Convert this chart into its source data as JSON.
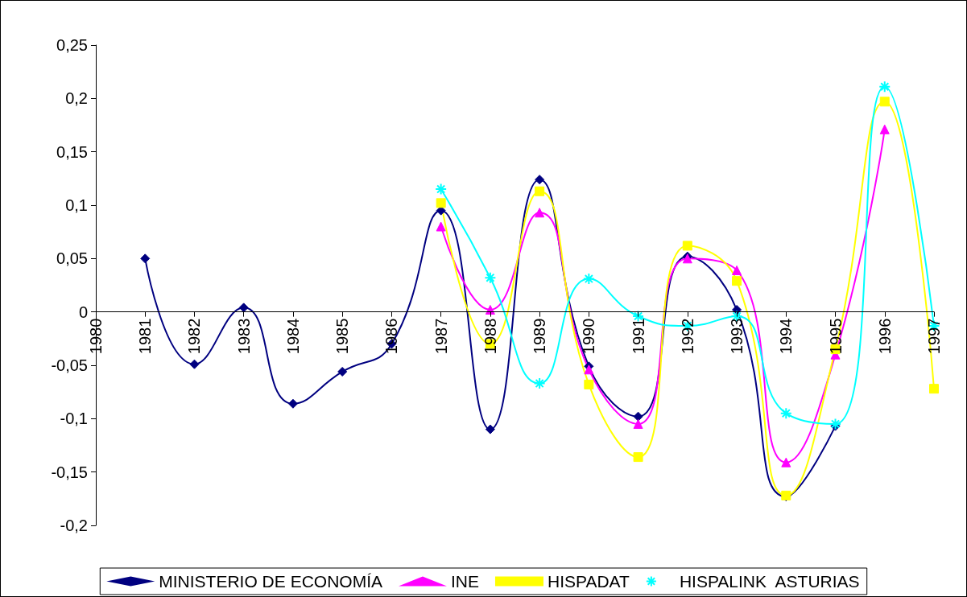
{
  "chart_data": {
    "type": "line",
    "categories": [
      "1980",
      "1981",
      "1982",
      "1983",
      "1984",
      "1985",
      "1986",
      "1987",
      "1988",
      "1989",
      "1990",
      "1991",
      "1992",
      "1993",
      "1994",
      "1995",
      "1996",
      "1997"
    ],
    "series": [
      {
        "name": "MINISTERIO DE ECONOMÍA",
        "color": "#000080",
        "marker": "diamond",
        "values": [
          null,
          0.05,
          -0.049,
          0.004,
          -0.086,
          -0.056,
          -0.03,
          0.095,
          -0.11,
          0.124,
          -0.051,
          -0.098,
          0.052,
          0.002,
          -0.173,
          -0.107,
          null,
          null
        ]
      },
      {
        "name": "INE",
        "color": "#ff00ff",
        "marker": "triangle",
        "values": [
          null,
          null,
          null,
          null,
          null,
          null,
          null,
          0.08,
          0.002,
          0.093,
          -0.054,
          -0.105,
          0.05,
          0.039,
          -0.141,
          -0.04,
          0.171,
          null
        ]
      },
      {
        "name": "HISPADAT",
        "color": "#ffff00",
        "marker": "square",
        "values": [
          null,
          null,
          null,
          null,
          null,
          null,
          null,
          0.102,
          -0.03,
          0.113,
          -0.068,
          -0.136,
          0.062,
          0.029,
          -0.172,
          -0.035,
          0.197,
          -0.072
        ]
      },
      {
        "name": "HISPALINK  ASTURIAS",
        "color": "#00ffff",
        "marker": "cross",
        "values": [
          null,
          null,
          null,
          null,
          null,
          null,
          null,
          0.115,
          0.032,
          -0.067,
          0.031,
          -0.004,
          -0.013,
          -0.004,
          -0.095,
          -0.105,
          0.211,
          -0.013
        ]
      }
    ],
    "ylim": [
      -0.2,
      0.25
    ],
    "yticks": [
      {
        "value": -0.2,
        "label": "-0,2"
      },
      {
        "value": -0.15,
        "label": "-0,15"
      },
      {
        "value": -0.1,
        "label": "-0,1"
      },
      {
        "value": -0.05,
        "label": "-0,05"
      },
      {
        "value": 0,
        "label": "0"
      },
      {
        "value": 0.05,
        "label": "0,05"
      },
      {
        "value": 0.1,
        "label": "0,1"
      },
      {
        "value": 0.15,
        "label": "0,15"
      },
      {
        "value": 0.2,
        "label": "0,2"
      },
      {
        "value": 0.25,
        "label": "0,25"
      }
    ],
    "grid": false,
    "legend": "bottom",
    "line_style": "solid"
  }
}
